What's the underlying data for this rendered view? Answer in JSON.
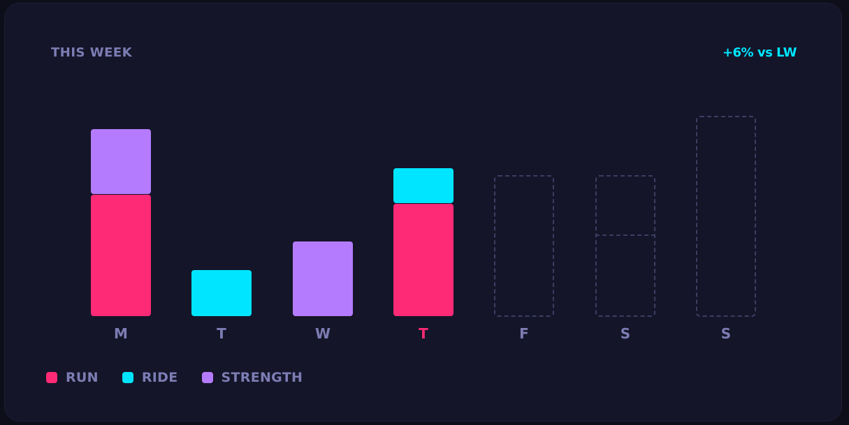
{
  "header": {
    "title": "THIS WEEK",
    "delta": "+6% vs LW"
  },
  "colors": {
    "run": "#ff2a75",
    "ride": "#00e5ff",
    "strength": "#b57bff",
    "label": "#7d7db4",
    "today": "#ff2a75",
    "ghost": "#3d3d62"
  },
  "days": [
    {
      "label": "M"
    },
    {
      "label": "T"
    },
    {
      "label": "W"
    },
    {
      "label": "T"
    },
    {
      "label": "F"
    },
    {
      "label": "S"
    },
    {
      "label": "S"
    }
  ],
  "legend": [
    {
      "label": "RUN"
    },
    {
      "label": "RIDE"
    },
    {
      "label": "STRENGTH"
    }
  ],
  "chart_data": {
    "type": "bar",
    "stacked": true,
    "title": "THIS WEEK",
    "annotation": "+6% vs LW",
    "categories": [
      "M",
      "T",
      "W",
      "T",
      "F",
      "S",
      "S"
    ],
    "series": [
      {
        "name": "RUN",
        "color": "#ff2a75",
        "values": [
          175,
          0,
          0,
          162,
          null,
          null,
          null
        ]
      },
      {
        "name": "RIDE",
        "color": "#00e5ff",
        "values": [
          0,
          67,
          0,
          51,
          null,
          null,
          null
        ]
      },
      {
        "name": "STRENGTH",
        "color": "#b57bff",
        "values": [
          94,
          0,
          108,
          0,
          null,
          null,
          null
        ]
      }
    ],
    "planned": [
      {
        "day_index": 4,
        "total": 203
      },
      {
        "day_index": 5,
        "total": 203,
        "segments": [
          118,
          85
        ]
      },
      {
        "day_index": 6,
        "total": 288
      }
    ],
    "today_index": 3,
    "units": "relative (px height, no axis shown)",
    "grid": false,
    "legend_position": "bottom-left"
  }
}
